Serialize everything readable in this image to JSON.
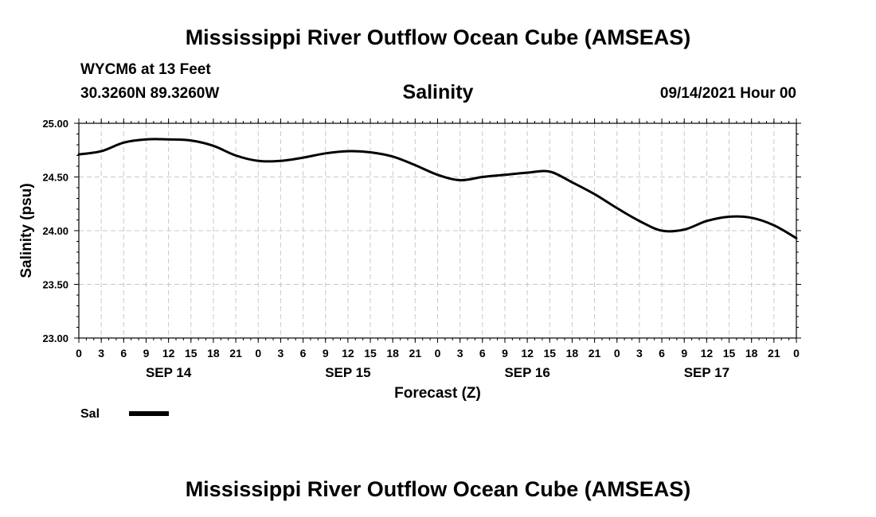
{
  "header": {
    "title": "Mississippi River Outflow Ocean Cube (AMSEAS)",
    "station": "WYCM6 at 13 Feet",
    "coords": "30.3260N  89.3260W",
    "datetime": "09/14/2021 Hour 00"
  },
  "footer": {
    "title": "Mississippi River Outflow Ocean Cube (AMSEAS)"
  },
  "colors": {
    "line": "#000000",
    "grid": "#c8c8c8",
    "axis": "#000000"
  },
  "chart_data": {
    "type": "line",
    "title": "Salinity",
    "xlabel": "Forecast (Z)",
    "ylabel": "Salinity (psu)",
    "ylim": [
      23.0,
      25.0
    ],
    "xlim_hours": [
      0,
      96
    ],
    "grid": true,
    "y_ticks": [
      23.0,
      23.5,
      24.0,
      24.5,
      25.0
    ],
    "y_tick_labels": [
      "23.00",
      "23.50",
      "24.00",
      "24.50",
      "25.00"
    ],
    "x_tick_hours": [
      0,
      3,
      6,
      9,
      12,
      15,
      18,
      21,
      24,
      27,
      30,
      33,
      36,
      39,
      42,
      45,
      48,
      51,
      54,
      57,
      60,
      63,
      66,
      69,
      72,
      75,
      78,
      81,
      84,
      87,
      90,
      93,
      96
    ],
    "x_tick_labels": [
      "0",
      "3",
      "6",
      "9",
      "12",
      "15",
      "18",
      "21",
      "0",
      "3",
      "6",
      "9",
      "12",
      "15",
      "18",
      "21",
      "0",
      "3",
      "6",
      "9",
      "12",
      "15",
      "18",
      "21",
      "0",
      "3",
      "6",
      "9",
      "12",
      "15",
      "18",
      "21",
      "0"
    ],
    "date_labels": [
      {
        "hour": 12,
        "label": "SEP 14"
      },
      {
        "hour": 36,
        "label": "SEP 15"
      },
      {
        "hour": 60,
        "label": "SEP 16"
      },
      {
        "hour": 84,
        "label": "SEP 17"
      }
    ],
    "legend": "bottom-left",
    "series": [
      {
        "name": "Sal",
        "x_hours": [
          0,
          3,
          6,
          9,
          12,
          15,
          18,
          21,
          24,
          27,
          30,
          33,
          36,
          39,
          42,
          45,
          48,
          51,
          54,
          57,
          60,
          63,
          66,
          69,
          72,
          75,
          78,
          81,
          84,
          87,
          90,
          93,
          96
        ],
        "values": [
          24.71,
          24.74,
          24.82,
          24.85,
          24.85,
          24.84,
          24.79,
          24.7,
          24.65,
          24.65,
          24.68,
          24.72,
          24.74,
          24.73,
          24.69,
          24.61,
          24.52,
          24.47,
          24.5,
          24.52,
          24.54,
          24.55,
          24.45,
          24.34,
          24.21,
          24.09,
          24.0,
          24.01,
          24.09,
          24.13,
          24.12,
          24.05,
          23.93
        ]
      }
    ]
  }
}
